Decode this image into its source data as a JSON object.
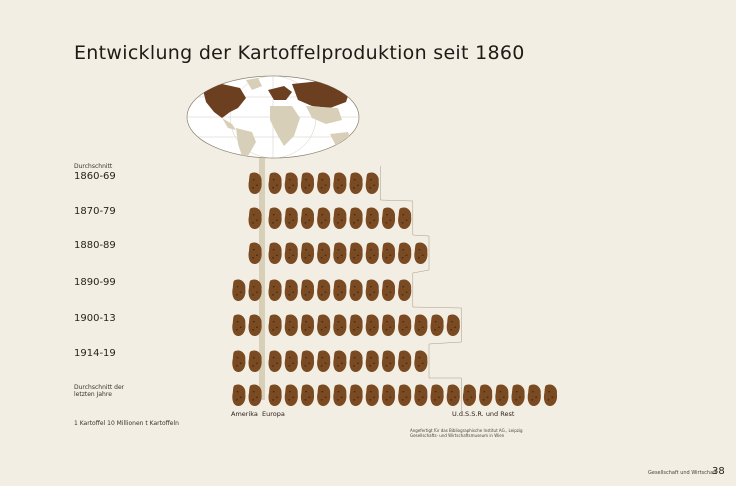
{
  "chart_data": {
    "type": "table",
    "title": "Entwicklung der Kartoffelproduktion seit 1860",
    "unit_legend": "1 Kartoffel 10 Millionen t Kartoffeln",
    "column_caption": "Durchschnitt",
    "regions": [
      "Amerika",
      "Europa",
      "U.d.S.S.R. und Rest"
    ],
    "rows": [
      {
        "label": "1860-69",
        "caption": "Durchschnitt",
        "amerika": 1,
        "europa": 7,
        "rest": 0
      },
      {
        "label": "1870-79",
        "caption": "",
        "amerika": 1,
        "europa": 9,
        "rest": 0
      },
      {
        "label": "1880-89",
        "caption": "",
        "amerika": 1,
        "europa": 10,
        "rest": 0
      },
      {
        "label": "1890-99",
        "caption": "",
        "amerika": 2,
        "europa": 9,
        "rest": 0
      },
      {
        "label": "1900-13",
        "caption": "",
        "amerika": 2,
        "europa": 12,
        "rest": 0
      },
      {
        "label": "1914-19",
        "caption": "",
        "amerika": 2,
        "europa": 10,
        "rest": 0
      },
      {
        "label": "",
        "caption": "Durchschnitt der letzten Jahre",
        "amerika": 2,
        "europa": 12,
        "rest": 6
      }
    ],
    "colors": {
      "potato": "#7a4a22",
      "potato_spot": "#3d2410",
      "background": "#f3eee3",
      "map_land": "#d8cfb8",
      "map_highlight": "#6b3f1f",
      "map_ocean": "#ffffff"
    }
  },
  "credit": "Angefertigt für das Bibliographische Institut AG., Leipzig Gesellschafts- und Wirtschaftsmuseum in Wien",
  "footer": {
    "section": "Gesellschaft und Wirtschaft",
    "page": "38"
  }
}
